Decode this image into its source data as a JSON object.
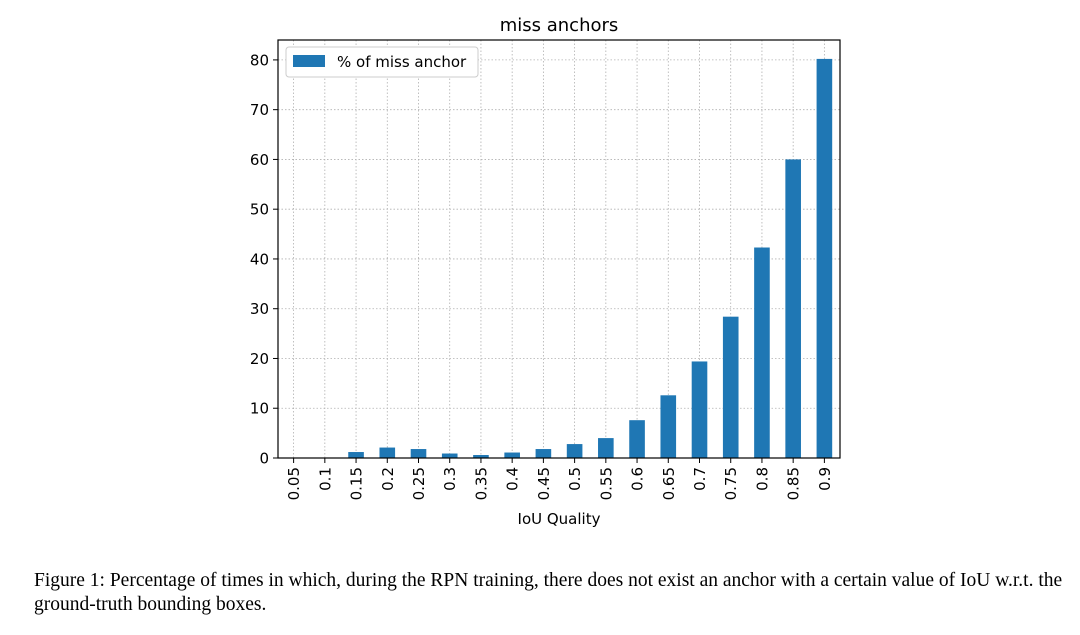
{
  "chart_data": {
    "type": "bar",
    "title": "miss anchors",
    "xlabel": "IoU Quality",
    "ylabel": "",
    "categories": [
      "0.05",
      "0.1",
      "0.15",
      "0.2",
      "0.25",
      "0.3",
      "0.35",
      "0.4",
      "0.45",
      "0.5",
      "0.55",
      "0.6",
      "0.65",
      "0.7",
      "0.75",
      "0.8",
      "0.85",
      "0.9"
    ],
    "series": [
      {
        "name": "% of miss anchor",
        "values": [
          0,
          0,
          1.2,
          2.1,
          1.8,
          0.9,
          0.6,
          1.1,
          1.8,
          2.8,
          4.0,
          7.6,
          12.6,
          19.4,
          28.4,
          42.3,
          60.0,
          80.2
        ],
        "color": "#1f77b4"
      }
    ],
    "ylim": [
      0,
      84
    ],
    "yticks": [
      0,
      10,
      20,
      30,
      40,
      50,
      60,
      70,
      80
    ],
    "grid": true,
    "legend_position": "top-left"
  },
  "caption": "Figure 1: Percentage of times in which, during the RPN training, there does not exist an anchor with a certain value of IoU w.r.t. the ground-truth bounding boxes."
}
